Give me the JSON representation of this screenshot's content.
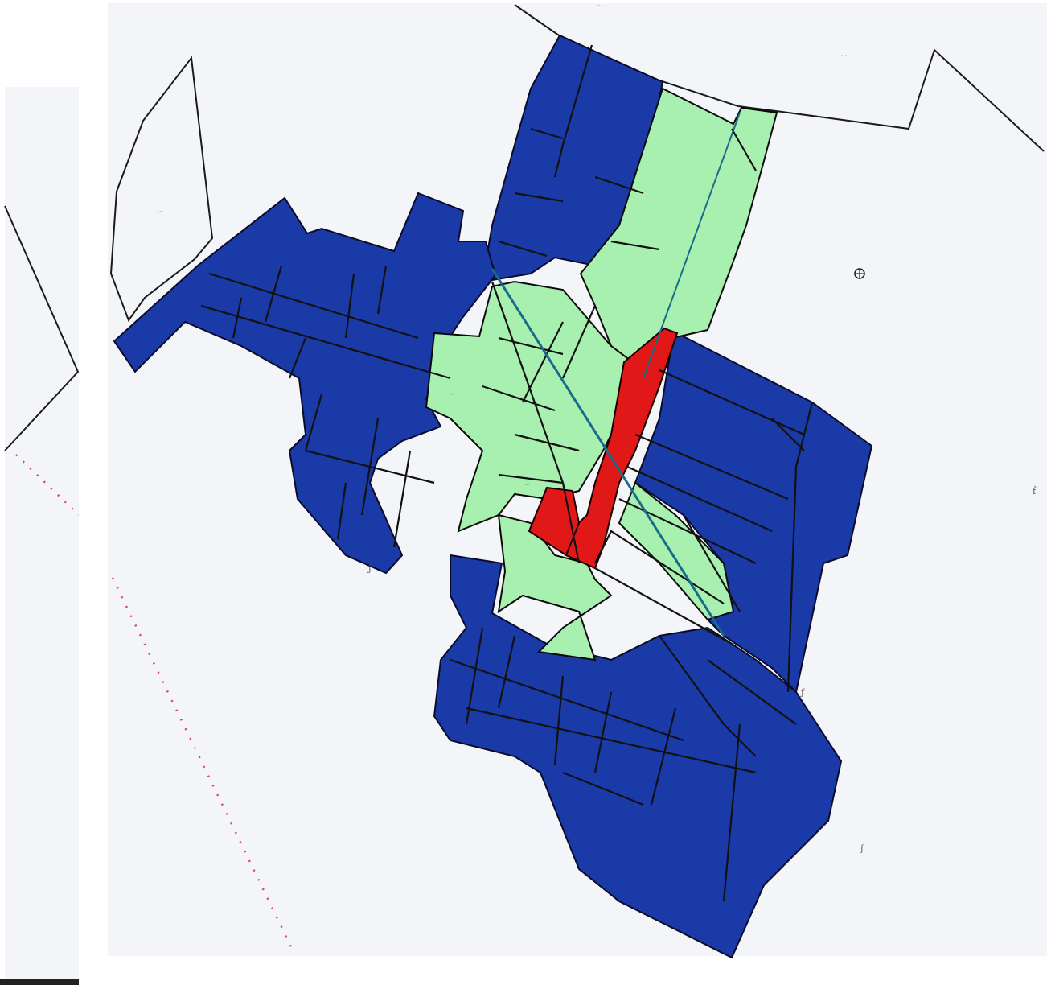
{
  "map": {
    "colors": {
      "paper": "#f4f5f8",
      "zone_blue": "#1a3aa8",
      "zone_green": "#a8f0b0",
      "zone_red": "#e01818",
      "boundary": "#111111",
      "railway_dots": "#d94a4a"
    },
    "legend_zones": [
      "blue",
      "green",
      "red"
    ],
    "labels": {
      "top_parcel": "···",
      "top_right_parcel": "···",
      "left_parcel": "···",
      "green_parcel_west": "···",
      "green_parcel_center": "···",
      "green_parcel_south": "···",
      "right_margin_mark": "ḟ",
      "east_pencil_mark": "ƒ",
      "southeast_pencil_mark": "ƒ",
      "southwest_pencil_mark": "ƒ"
    },
    "symbols": [
      "compass-circle-icon"
    ]
  }
}
